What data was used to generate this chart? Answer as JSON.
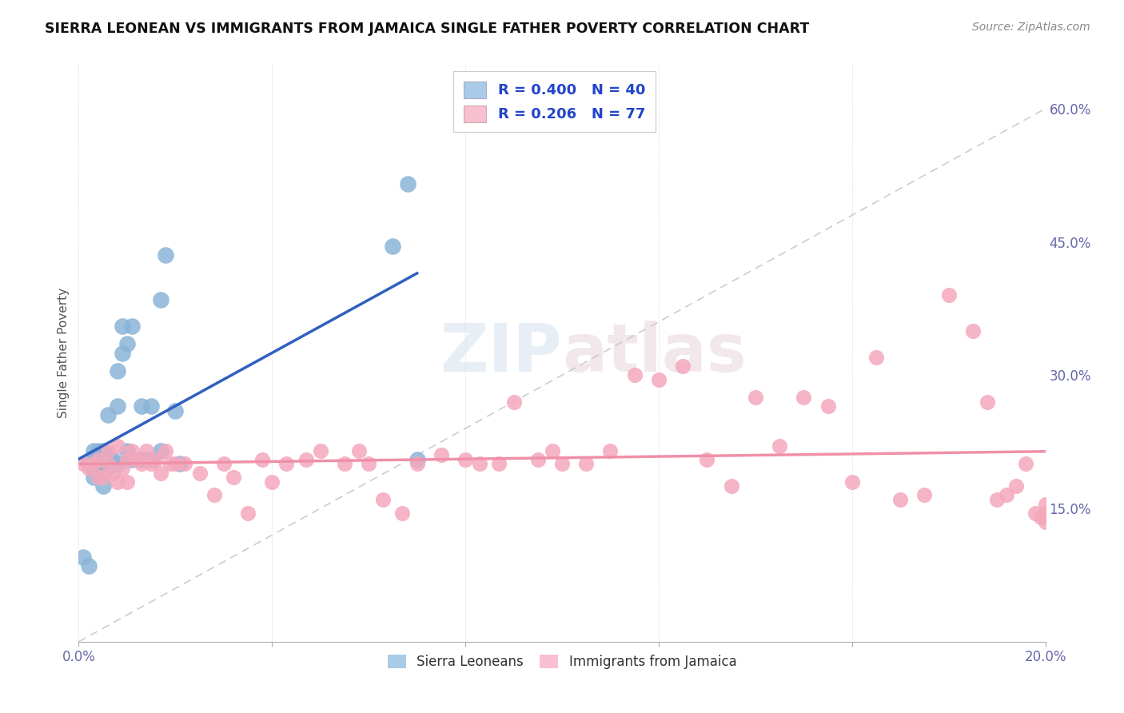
{
  "title": "SIERRA LEONEAN VS IMMIGRANTS FROM JAMAICA SINGLE FATHER POVERTY CORRELATION CHART",
  "source": "Source: ZipAtlas.com",
  "ylabel": "Single Father Poverty",
  "xlim": [
    0.0,
    0.2
  ],
  "ylim": [
    0.0,
    0.65
  ],
  "x_tick_positions": [
    0.0,
    0.04,
    0.08,
    0.12,
    0.16,
    0.2
  ],
  "x_tick_labels": [
    "0.0%",
    "",
    "",
    "",
    "",
    "20.0%"
  ],
  "y_ticks_right": [
    0.15,
    0.3,
    0.45,
    0.6
  ],
  "y_tick_labels_right": [
    "15.0%",
    "30.0%",
    "45.0%",
    "60.0%"
  ],
  "legend1_label1": "R = 0.400   N = 40",
  "legend1_label2": "R = 0.206   N = 77",
  "legend2_label1": "Sierra Leoneans",
  "legend2_label2": "Immigrants from Jamaica",
  "watermark": "ZIPatlas",
  "sierra_leone_color": "#8ab4d8",
  "jamaica_color": "#f4a8bc",
  "trendline_sierra_color": "#3060c0",
  "trendline_jamaica_color": "#f090a8",
  "diagonal_color": "#c8c8c8",
  "legend_patch_sierra": "#a8cce8",
  "legend_patch_jamaica": "#f8c0d0",
  "legend_text_color": "#2244cc",
  "sierra_x": [
    0.001,
    0.002,
    0.002,
    0.003,
    0.003,
    0.003,
    0.004,
    0.004,
    0.004,
    0.005,
    0.005,
    0.005,
    0.005,
    0.006,
    0.006,
    0.006,
    0.007,
    0.007,
    0.008,
    0.008,
    0.008,
    0.009,
    0.009,
    0.01,
    0.01,
    0.011,
    0.011,
    0.013,
    0.013,
    0.014,
    0.015,
    0.015,
    0.017,
    0.017,
    0.018,
    0.02,
    0.021,
    0.065,
    0.068,
    0.07
  ],
  "sierra_y": [
    0.095,
    0.085,
    0.2,
    0.195,
    0.185,
    0.215,
    0.19,
    0.21,
    0.215,
    0.175,
    0.19,
    0.205,
    0.215,
    0.195,
    0.205,
    0.255,
    0.2,
    0.205,
    0.2,
    0.265,
    0.305,
    0.325,
    0.355,
    0.215,
    0.335,
    0.205,
    0.355,
    0.205,
    0.265,
    0.205,
    0.205,
    0.265,
    0.385,
    0.215,
    0.435,
    0.26,
    0.2,
    0.445,
    0.515,
    0.205
  ],
  "jamaica_x": [
    0.001,
    0.002,
    0.003,
    0.004,
    0.004,
    0.005,
    0.006,
    0.006,
    0.007,
    0.008,
    0.008,
    0.009,
    0.01,
    0.01,
    0.011,
    0.012,
    0.013,
    0.014,
    0.015,
    0.016,
    0.017,
    0.018,
    0.019,
    0.02,
    0.022,
    0.025,
    0.028,
    0.03,
    0.032,
    0.035,
    0.038,
    0.04,
    0.043,
    0.047,
    0.05,
    0.055,
    0.058,
    0.06,
    0.063,
    0.067,
    0.07,
    0.075,
    0.08,
    0.083,
    0.087,
    0.09,
    0.095,
    0.098,
    0.1,
    0.105,
    0.11,
    0.115,
    0.12,
    0.125,
    0.13,
    0.135,
    0.14,
    0.145,
    0.15,
    0.155,
    0.16,
    0.165,
    0.17,
    0.175,
    0.18,
    0.185,
    0.188,
    0.19,
    0.192,
    0.194,
    0.196,
    0.198,
    0.199,
    0.2,
    0.2,
    0.2,
    0.2
  ],
  "jamaica_y": [
    0.2,
    0.195,
    0.2,
    0.185,
    0.205,
    0.185,
    0.2,
    0.215,
    0.19,
    0.18,
    0.22,
    0.195,
    0.18,
    0.205,
    0.215,
    0.205,
    0.2,
    0.215,
    0.2,
    0.205,
    0.19,
    0.215,
    0.2,
    0.2,
    0.2,
    0.19,
    0.165,
    0.2,
    0.185,
    0.145,
    0.205,
    0.18,
    0.2,
    0.205,
    0.215,
    0.2,
    0.215,
    0.2,
    0.16,
    0.145,
    0.2,
    0.21,
    0.205,
    0.2,
    0.2,
    0.27,
    0.205,
    0.215,
    0.2,
    0.2,
    0.215,
    0.3,
    0.295,
    0.31,
    0.205,
    0.175,
    0.275,
    0.22,
    0.275,
    0.265,
    0.18,
    0.32,
    0.16,
    0.165,
    0.39,
    0.35,
    0.27,
    0.16,
    0.165,
    0.175,
    0.2,
    0.145,
    0.14,
    0.155,
    0.14,
    0.145,
    0.135
  ]
}
